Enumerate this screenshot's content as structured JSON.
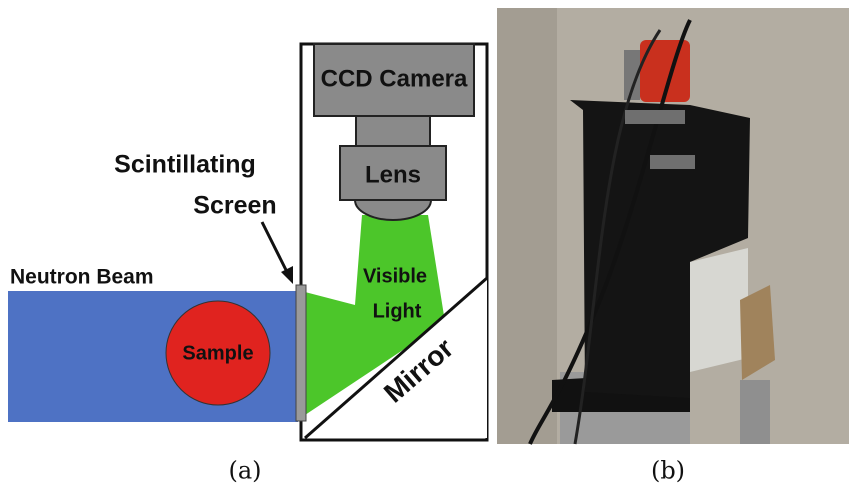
{
  "diagram": {
    "camera": "CCD Camera",
    "lens": "Lens",
    "screen_line1": "Scintillating",
    "screen_line2": "Screen",
    "beam": "Neutron Beam",
    "light_line1": "Visible",
    "light_line2": "Light",
    "sample": "Sample",
    "mirror": "Mirror"
  },
  "captions": [
    "(a)",
    "(b)"
  ]
}
